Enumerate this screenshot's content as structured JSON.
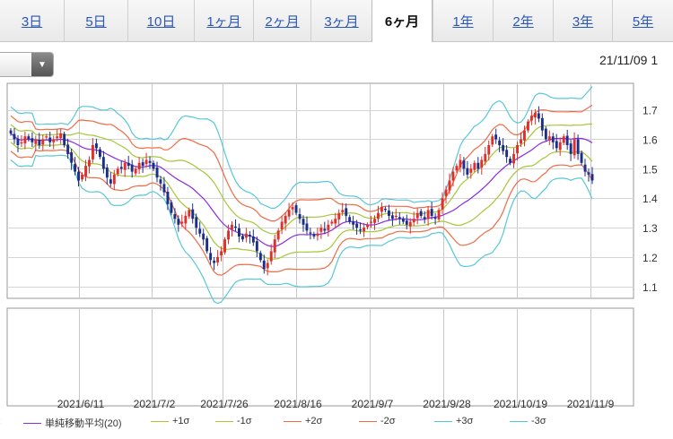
{
  "tabs": [
    {
      "label": "3日",
      "active": false
    },
    {
      "label": "5日",
      "active": false
    },
    {
      "label": "10日",
      "active": false
    },
    {
      "label": "1ヶ月",
      "active": false
    },
    {
      "label": "2ヶ月",
      "active": false
    },
    {
      "label": "3ヶ月",
      "active": false
    },
    {
      "label": "6ヶ月",
      "active": true
    },
    {
      "label": "1年",
      "active": false
    },
    {
      "label": "2年",
      "active": false
    },
    {
      "label": "3年",
      "active": false
    },
    {
      "label": "5年",
      "active": false
    }
  ],
  "select": {
    "icon": "triangle-down-icon"
  },
  "timestamp": "21/11/09 1",
  "legend": [
    {
      "label": "単純移動平均(20)",
      "color": "#8a2be2"
    },
    {
      "label": "+1σ",
      "color": "#a6c638"
    },
    {
      "label": "-1σ",
      "color": "#a6c638"
    },
    {
      "label": "+2σ",
      "color": "#ef6b45"
    },
    {
      "label": "-2σ",
      "color": "#ef6b45"
    },
    {
      "label": "+3σ",
      "color": "#56c8d8"
    },
    {
      "label": "-3σ",
      "color": "#56c8d8"
    }
  ],
  "chart_data": {
    "type": "candlestick",
    "x_ticks": [
      "2021/6/11",
      "2021/7/2",
      "2021/7/26",
      "2021/8/16",
      "2021/9/7",
      "2021/9/28",
      "2021/10/19",
      "2021/11/9"
    ],
    "y_ticks": [
      "1.7",
      "1.6",
      "1.5",
      "1.4",
      "1.3",
      "1.2",
      "1.1"
    ],
    "ylim": [
      1.06,
      1.79
    ],
    "grid": true,
    "colors": {
      "up": "#e0302a",
      "down": "#1a2e8a",
      "ma": "#8a2be2",
      "sigma1": "#a6c638",
      "sigma2": "#ef6b45",
      "sigma3": "#56c8d8"
    },
    "close": [
      1.62,
      1.6,
      1.58,
      1.59,
      1.61,
      1.6,
      1.59,
      1.6,
      1.58,
      1.6,
      1.61,
      1.59,
      1.6,
      1.61,
      1.62,
      1.58,
      1.55,
      1.52,
      1.49,
      1.46,
      1.48,
      1.51,
      1.53,
      1.58,
      1.57,
      1.54,
      1.5,
      1.47,
      1.45,
      1.48,
      1.5,
      1.5,
      1.52,
      1.51,
      1.49,
      1.5,
      1.52,
      1.51,
      1.53,
      1.52,
      1.5,
      1.47,
      1.45,
      1.42,
      1.38,
      1.35,
      1.33,
      1.31,
      1.32,
      1.34,
      1.36,
      1.33,
      1.3,
      1.28,
      1.26,
      1.22,
      1.19,
      1.18,
      1.2,
      1.22,
      1.26,
      1.29,
      1.31,
      1.3,
      1.27,
      1.26,
      1.28,
      1.27,
      1.25,
      1.22,
      1.19,
      1.16,
      1.18,
      1.22,
      1.26,
      1.29,
      1.32,
      1.34,
      1.36,
      1.37,
      1.35,
      1.33,
      1.31,
      1.29,
      1.28,
      1.27,
      1.28,
      1.3,
      1.29,
      1.31,
      1.32,
      1.33,
      1.35,
      1.36,
      1.34,
      1.32,
      1.31,
      1.3,
      1.29,
      1.3,
      1.31,
      1.32,
      1.33,
      1.35,
      1.37,
      1.36,
      1.34,
      1.33,
      1.34,
      1.33,
      1.32,
      1.31,
      1.32,
      1.33,
      1.35,
      1.34,
      1.33,
      1.36,
      1.34,
      1.33,
      1.36,
      1.4,
      1.43,
      1.46,
      1.49,
      1.51,
      1.53,
      1.5,
      1.48,
      1.5,
      1.52,
      1.5,
      1.53,
      1.55,
      1.58,
      1.61,
      1.6,
      1.58,
      1.56,
      1.54,
      1.52,
      1.55,
      1.58,
      1.6,
      1.63,
      1.66,
      1.68,
      1.69,
      1.67,
      1.63,
      1.6,
      1.61,
      1.59,
      1.57,
      1.59,
      1.61,
      1.58,
      1.55,
      1.6,
      1.55,
      1.52,
      1.49,
      1.48,
      1.46
    ]
  }
}
